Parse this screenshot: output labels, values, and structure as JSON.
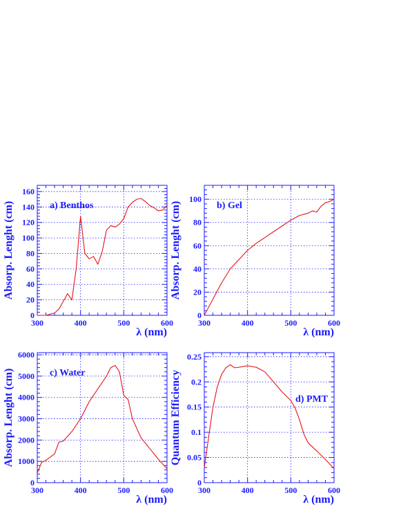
{
  "colors": {
    "axis": "#1a1aff",
    "curve": "#e8101a",
    "background": "#ffffff"
  },
  "chart_data": [
    {
      "type": "line",
      "panel_label": "a) Benthos",
      "xlabel": "λ (nm)",
      "ylabel": "Absorp. Lenght (cm)",
      "xlim": [
        300,
        600
      ],
      "ylim": [
        0,
        168
      ],
      "xticks": [
        300,
        400,
        500,
        600
      ],
      "yticks": [
        0,
        20,
        40,
        60,
        80,
        100,
        120,
        140,
        160
      ],
      "grid": true,
      "x": [
        300,
        320,
        340,
        350,
        360,
        370,
        380,
        390,
        400,
        410,
        420,
        430,
        440,
        450,
        460,
        470,
        480,
        490,
        500,
        510,
        520,
        530,
        540,
        550,
        560,
        570,
        580,
        590,
        600
      ],
      "y": [
        0,
        0,
        3,
        8,
        18,
        28,
        20,
        60,
        128,
        80,
        73,
        76,
        66,
        82,
        110,
        116,
        114,
        118,
        125,
        140,
        146,
        150,
        151,
        147,
        142,
        139,
        135,
        136,
        142
      ]
    },
    {
      "type": "line",
      "panel_label": "b) Gel",
      "xlabel": "λ (nm)",
      "ylabel": "Absorp. Lenght (cm)",
      "xlim": [
        300,
        600
      ],
      "ylim": [
        0,
        112
      ],
      "xticks": [
        300,
        400,
        500,
        600
      ],
      "yticks": [
        0,
        20,
        40,
        60,
        80,
        100
      ],
      "grid": true,
      "x": [
        300,
        320,
        340,
        360,
        380,
        400,
        420,
        440,
        460,
        480,
        500,
        520,
        540,
        550,
        560,
        570,
        580,
        590,
        600
      ],
      "y": [
        0,
        14,
        28,
        40,
        48,
        56,
        62,
        67,
        72,
        77,
        82,
        86,
        88,
        90,
        89,
        94,
        97,
        98,
        100
      ]
    },
    {
      "type": "line",
      "panel_label": "c) Water",
      "xlabel": "λ (nm)",
      "ylabel": "Absorp. Lenght (cm)",
      "xlim": [
        300,
        600
      ],
      "ylim": [
        0,
        6100
      ],
      "xticks": [
        300,
        400,
        500,
        600
      ],
      "yticks": [
        0,
        1000,
        2000,
        3000,
        4000,
        5000,
        6000
      ],
      "grid": true,
      "x": [
        300,
        310,
        320,
        340,
        350,
        360,
        380,
        400,
        420,
        440,
        460,
        470,
        480,
        490,
        500,
        510,
        520,
        540,
        560,
        580,
        600
      ],
      "y": [
        450,
        950,
        1050,
        1350,
        1900,
        1950,
        2400,
        3000,
        3800,
        4400,
        5000,
        5400,
        5500,
        5200,
        4100,
        3900,
        3000,
        2100,
        1600,
        1100,
        650
      ]
    },
    {
      "type": "line",
      "panel_label": "d) PMT",
      "xlabel": "λ (nm)",
      "ylabel": "Quantum Efficiency",
      "xlim": [
        300,
        600
      ],
      "ylim": [
        0,
        0.258
      ],
      "xticks": [
        300,
        400,
        500,
        600
      ],
      "yticks": [
        0,
        0.05,
        0.1,
        0.15,
        0.2,
        0.25
      ],
      "ytick_labels": [
        "0",
        "0.05",
        "0.1",
        "0.15",
        "0.2",
        "0.25"
      ],
      "grid": true,
      "x": [
        300,
        310,
        320,
        330,
        340,
        350,
        360,
        370,
        380,
        400,
        420,
        440,
        460,
        480,
        500,
        510,
        520,
        530,
        540,
        560,
        580,
        600
      ],
      "y": [
        0.03,
        0.09,
        0.15,
        0.19,
        0.215,
        0.228,
        0.234,
        0.228,
        0.229,
        0.232,
        0.229,
        0.22,
        0.2,
        0.18,
        0.163,
        0.148,
        0.125,
        0.097,
        0.079,
        0.063,
        0.046,
        0.028
      ]
    }
  ]
}
